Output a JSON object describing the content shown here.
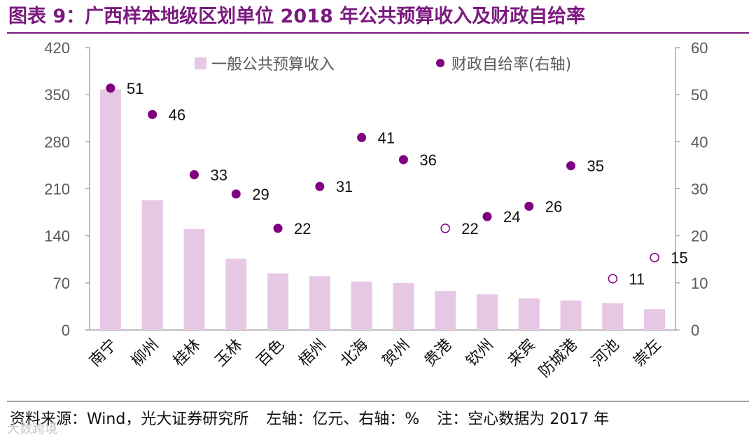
{
  "title": "图表 9：广西样本地级区划单位 2018 年公共预算收入及财政自给率",
  "footer": {
    "source": "资料来源：Wind，光大证券研究所",
    "axes_note": "左轴：亿元、右轴：%",
    "note": "注：空心数据为 2017 年"
  },
  "watermark": "大数跨境",
  "colors": {
    "title": "#7b1a7e",
    "bar": "#e6c8e4",
    "dot": "#800080",
    "axis_text": "#595959"
  },
  "chart_data": {
    "type": "bar",
    "categories": [
      "南宁",
      "柳州",
      "桂林",
      "玉林",
      "百色",
      "梧州",
      "北海",
      "贺州",
      "贵港",
      "钦州",
      "来宾",
      "防城港",
      "河池",
      "崇左"
    ],
    "series": [
      {
        "name": "一般公共预算收入",
        "axis": "left",
        "values": [
          358,
          193,
          150,
          106,
          84,
          80,
          72,
          70,
          58,
          53,
          47,
          44,
          40,
          31
        ]
      },
      {
        "name": "财政自给率(右轴)",
        "axis": "right",
        "type": "scatter",
        "values": [
          51,
          46,
          33,
          29,
          22,
          31,
          41,
          36,
          22,
          24,
          26,
          35,
          11,
          15
        ],
        "labels": [
          "51",
          "46",
          "33",
          "29",
          "22",
          "31",
          "41",
          "36",
          "22",
          "24",
          "26",
          "35",
          "11",
          "15"
        ],
        "y_plot": [
          51.4,
          45.8,
          33.0,
          28.9,
          21.6,
          30.5,
          40.9,
          36.2,
          21.6,
          24.1,
          26.3,
          34.9,
          10.9,
          15.4
        ],
        "hollow": [
          false,
          false,
          false,
          false,
          false,
          false,
          false,
          false,
          true,
          false,
          false,
          false,
          true,
          true
        ]
      }
    ],
    "left_axis": {
      "ylim": [
        0,
        420
      ],
      "ticks": [
        "0",
        "70",
        "140",
        "210",
        "280",
        "350",
        "420"
      ]
    },
    "right_axis": {
      "ylim": [
        0,
        60
      ],
      "ticks": [
        "0",
        "10",
        "20",
        "30",
        "40",
        "50",
        "60"
      ]
    },
    "legend": {
      "position": "top-center",
      "items": [
        "一般公共预算收入",
        "财政自给率(右轴)"
      ]
    },
    "xlabel": "",
    "ylabel": "",
    "grid": false
  }
}
